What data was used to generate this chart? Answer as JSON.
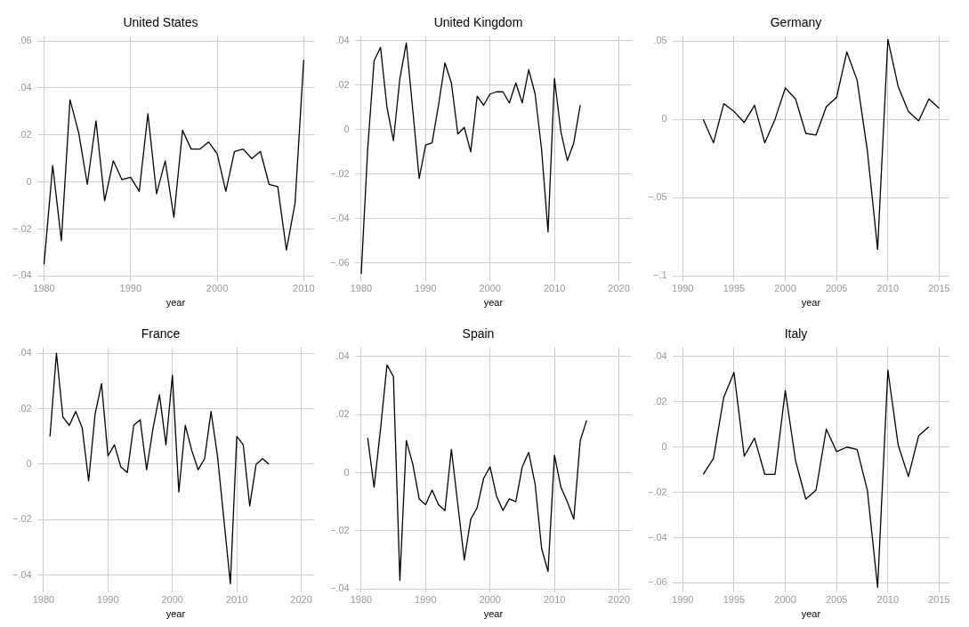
{
  "chart_data": [
    {
      "type": "line",
      "title": "United States",
      "xlabel": "year",
      "x": [
        1980,
        1981,
        1982,
        1983,
        1984,
        1985,
        1986,
        1987,
        1988,
        1989,
        1990,
        1991,
        1992,
        1993,
        1994,
        1995,
        1996,
        1997,
        1998,
        1999,
        2000,
        2001,
        2002,
        2003,
        2004,
        2005,
        2006,
        2007,
        2008,
        2009,
        2010
      ],
      "values": [
        -0.035,
        0.007,
        -0.025,
        0.035,
        0.021,
        -0.001,
        0.026,
        -0.008,
        0.009,
        0.001,
        0.002,
        -0.004,
        0.029,
        -0.005,
        0.009,
        -0.015,
        0.022,
        0.014,
        0.014,
        0.017,
        0.012,
        -0.004,
        0.013,
        0.014,
        0.01,
        0.013,
        -0.001,
        -0.002,
        -0.029,
        -0.009,
        0.052
      ],
      "color": "#000000",
      "xlim": [
        1979.2,
        2011.2
      ],
      "xticks": [
        1980,
        1990,
        2000,
        2010
      ],
      "ylim": [
        -0.042,
        0.062
      ],
      "yticks": [
        {
          "value": -0.04,
          "label": "−.04"
        },
        {
          "value": -0.02,
          "label": "−.02"
        },
        {
          "value": 0,
          "label": "0"
        },
        {
          "value": 0.02,
          "label": ".02"
        },
        {
          "value": 0.04,
          "label": ".04"
        },
        {
          "value": 0.06,
          "label": ".06"
        }
      ],
      "grid": true
    },
    {
      "type": "line",
      "title": "United Kingdom",
      "xlabel": "year",
      "x": [
        1980,
        1981,
        1982,
        1983,
        1984,
        1985,
        1986,
        1987,
        1988,
        1989,
        1990,
        1991,
        1992,
        1993,
        1994,
        1995,
        1996,
        1997,
        1998,
        1999,
        2000,
        2001,
        2002,
        2003,
        2004,
        2005,
        2006,
        2007,
        2008,
        2009,
        2010,
        2011,
        2012,
        2013,
        2014
      ],
      "values": [
        -0.065,
        -0.009,
        0.031,
        0.037,
        0.01,
        -0.005,
        0.023,
        0.039,
        0.009,
        -0.022,
        -0.007,
        -0.006,
        0.011,
        0.03,
        0.021,
        -0.002,
        0.001,
        -0.01,
        0.015,
        0.011,
        0.016,
        0.017,
        0.017,
        0.012,
        0.021,
        0.012,
        0.027,
        0.016,
        -0.009,
        -0.046,
        0.023,
        -0.001,
        -0.014,
        -0.006,
        0.011
      ],
      "color": "#000000",
      "xlim": [
        1979,
        2022
      ],
      "xticks": [
        1980,
        1990,
        2000,
        2010,
        2020
      ],
      "ylim": [
        -0.068,
        0.042
      ],
      "yticks": [
        {
          "value": -0.06,
          "label": "−.06"
        },
        {
          "value": -0.04,
          "label": "−.04"
        },
        {
          "value": -0.02,
          "label": "−.02"
        },
        {
          "value": 0,
          "label": "0"
        },
        {
          "value": 0.02,
          "label": ".02"
        },
        {
          "value": 0.04,
          "label": ".04"
        }
      ],
      "grid": true
    },
    {
      "type": "line",
      "title": "Germany",
      "xlabel": "year",
      "x": [
        1992,
        1993,
        1994,
        1995,
        1996,
        1997,
        1998,
        1999,
        2000,
        2001,
        2002,
        2003,
        2004,
        2005,
        2006,
        2007,
        2008,
        2009,
        2010,
        2011,
        2012,
        2013,
        2014,
        2015
      ],
      "values": [
        0,
        -0.015,
        0.01,
        0.005,
        -0.002,
        0.009,
        -0.015,
        0,
        0.02,
        0.013,
        -0.009,
        -0.01,
        0.008,
        0.014,
        0.043,
        0.025,
        -0.02,
        -0.083,
        0.051,
        0.021,
        0.005,
        -0.001,
        0.013,
        0.007
      ],
      "color": "#000000",
      "xlim": [
        1989,
        2016
      ],
      "xticks": [
        1990,
        1995,
        2000,
        2005,
        2010,
        2015
      ],
      "ylim": [
        -0.103,
        0.053
      ],
      "yticks": [
        {
          "value": -0.1,
          "label": "−.1"
        },
        {
          "value": -0.05,
          "label": "−.05"
        },
        {
          "value": 0,
          "label": "0"
        },
        {
          "value": 0.05,
          "label": ".05"
        }
      ],
      "grid": true
    },
    {
      "type": "line",
      "title": "France",
      "xlabel": "year",
      "x": [
        1981,
        1982,
        1983,
        1984,
        1985,
        1986,
        1987,
        1988,
        1989,
        1990,
        1991,
        1992,
        1993,
        1994,
        1995,
        1996,
        1997,
        1998,
        1999,
        2000,
        2001,
        2002,
        2003,
        2004,
        2005,
        2006,
        2007,
        2008,
        2009,
        2010,
        2011,
        2012,
        2013,
        2014,
        2015
      ],
      "values": [
        0.01,
        0.04,
        0.017,
        0.014,
        0.019,
        0.013,
        -0.006,
        0.018,
        0.029,
        0.003,
        0.007,
        -0.001,
        -0.003,
        0.014,
        0.016,
        -0.002,
        0.013,
        0.025,
        0.007,
        0.032,
        -0.01,
        0.014,
        0.005,
        -0.002,
        0.002,
        0.019,
        0.003,
        -0.02,
        -0.043,
        0.01,
        0.007,
        -0.015,
        0.0,
        0.002,
        0.0
      ],
      "color": "#000000",
      "xlim": [
        1979,
        2022
      ],
      "xticks": [
        1980,
        1990,
        2000,
        2010,
        2020
      ],
      "ylim": [
        -0.046,
        0.042
      ],
      "yticks": [
        {
          "value": -0.04,
          "label": "−.04"
        },
        {
          "value": -0.02,
          "label": "−.02"
        },
        {
          "value": 0,
          "label": "0"
        },
        {
          "value": 0.02,
          "label": ".02"
        },
        {
          "value": 0.04,
          "label": ".04"
        }
      ],
      "grid": true
    },
    {
      "type": "line",
      "title": "Spain",
      "xlabel": "year",
      "x": [
        1981,
        1982,
        1983,
        1984,
        1985,
        1986,
        1987,
        1988,
        1989,
        1990,
        1991,
        1992,
        1993,
        1994,
        1995,
        1996,
        1997,
        1998,
        1999,
        2000,
        2001,
        2002,
        2003,
        2004,
        2005,
        2006,
        2007,
        2008,
        2009,
        2010,
        2011,
        2012,
        2013,
        2014,
        2015
      ],
      "values": [
        0.012,
        -0.005,
        0.015,
        0.037,
        0.033,
        -0.037,
        0.011,
        0.003,
        -0.009,
        -0.011,
        -0.006,
        -0.011,
        -0.013,
        0.008,
        -0.011,
        -0.03,
        -0.016,
        -0.012,
        -0.002,
        0.002,
        -0.008,
        -0.013,
        -0.009,
        -0.01,
        0.002,
        0.007,
        -0.004,
        -0.026,
        -0.034,
        0.006,
        -0.005,
        -0.01,
        -0.016,
        0.011,
        0.018
      ],
      "color": "#000000",
      "xlim": [
        1979,
        2022
      ],
      "xticks": [
        1980,
        1990,
        2000,
        2010,
        2020
      ],
      "ylim": [
        -0.041,
        0.043
      ],
      "yticks": [
        {
          "value": -0.04,
          "label": "−.04"
        },
        {
          "value": -0.02,
          "label": "−.02"
        },
        {
          "value": 0,
          "label": "0"
        },
        {
          "value": 0.02,
          "label": ".02"
        },
        {
          "value": 0.04,
          "label": ".04"
        }
      ],
      "grid": true
    },
    {
      "type": "line",
      "title": "Italy",
      "xlabel": "year",
      "x": [
        1992,
        1993,
        1994,
        1995,
        1996,
        1997,
        1998,
        1999,
        2000,
        2001,
        2002,
        2003,
        2004,
        2005,
        2006,
        2007,
        2008,
        2009,
        2010,
        2011,
        2012,
        2013,
        2014
      ],
      "values": [
        -0.012,
        -0.005,
        0.022,
        0.033,
        -0.004,
        0.004,
        -0.012,
        -0.012,
        0.025,
        -0.006,
        -0.023,
        -0.019,
        0.008,
        -0.002,
        0.0,
        -0.001,
        -0.019,
        -0.062,
        0.034,
        0.001,
        -0.013,
        0.005,
        0.009
      ],
      "color": "#000000",
      "xlim": [
        1989,
        2016
      ],
      "xticks": [
        1990,
        1995,
        2000,
        2005,
        2010,
        2015
      ],
      "ylim": [
        -0.064,
        0.044
      ],
      "yticks": [
        {
          "value": -0.06,
          "label": "−.06"
        },
        {
          "value": -0.04,
          "label": "−.04"
        },
        {
          "value": -0.02,
          "label": "−.02"
        },
        {
          "value": 0,
          "label": "0"
        },
        {
          "value": 0.02,
          "label": ".02"
        },
        {
          "value": 0.04,
          "label": ".04"
        }
      ],
      "grid": true
    }
  ]
}
